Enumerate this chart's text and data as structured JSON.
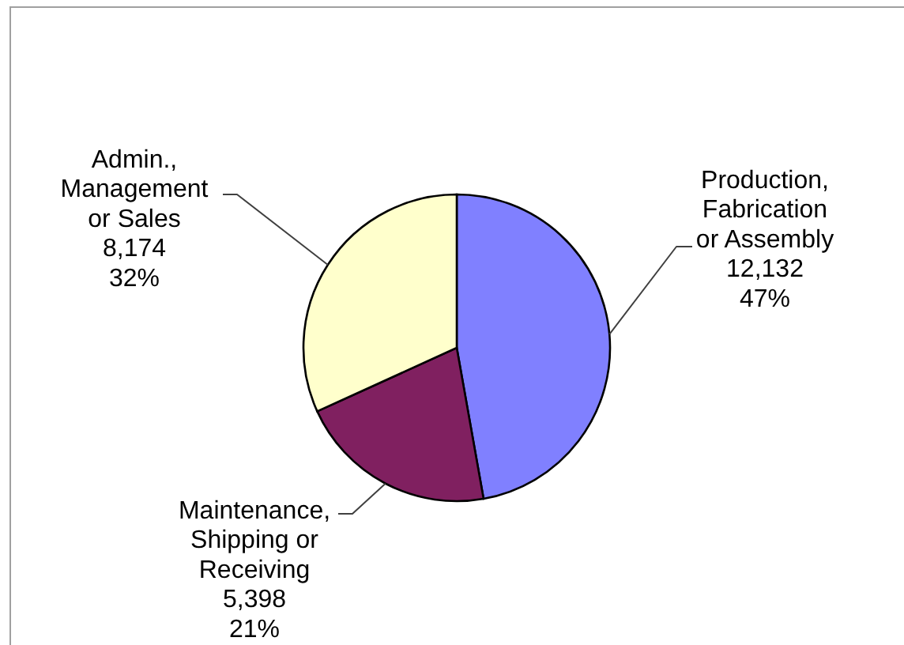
{
  "chart_data": {
    "type": "pie",
    "categories": [
      "Production, Fabrication or Assembly",
      "Maintenance, Shipping or Receiving",
      "Admin., Management or Sales"
    ],
    "values": [
      12132,
      5398,
      8174
    ],
    "colors": [
      "#8080ff",
      "#802060",
      "#ffffcc"
    ],
    "value_labels": [
      "12,132\n47%",
      "5,398\n21%",
      "8,174\n32%"
    ]
  }
}
